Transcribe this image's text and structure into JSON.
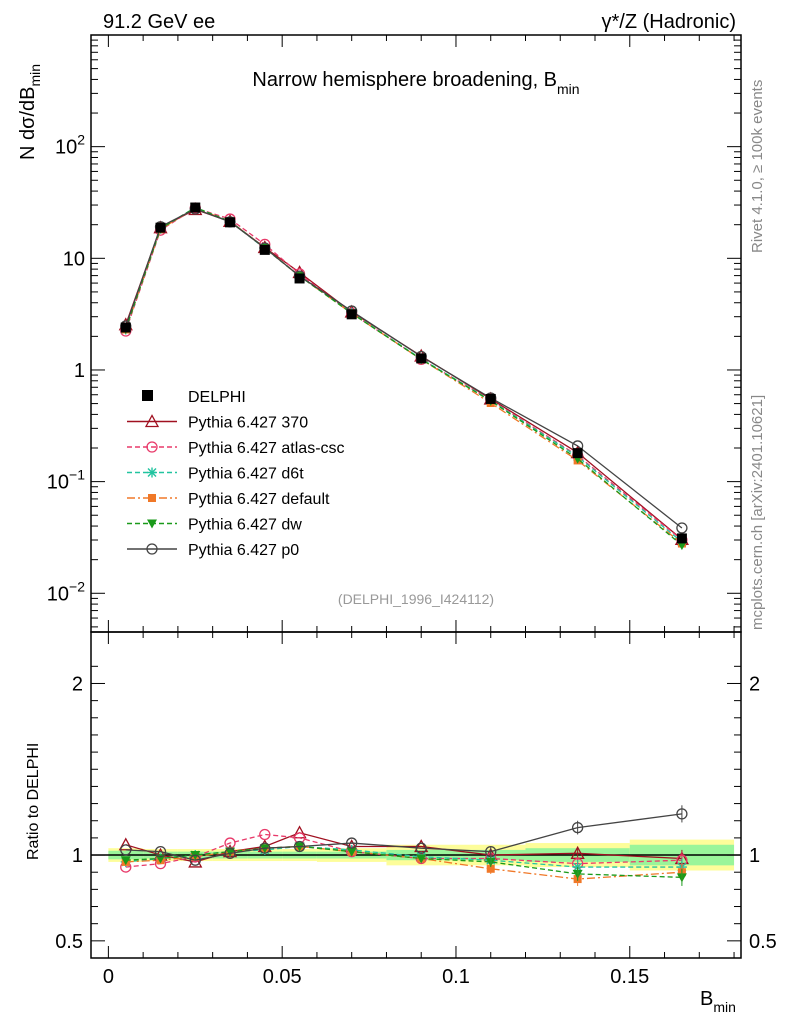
{
  "header": {
    "left": "91.2 GeV ee",
    "right": "γ*/Z (Hadronic)"
  },
  "side_labels": {
    "top": "Rivet 4.1.0, ≥ 100k events",
    "bottom": "mcplots.cern.ch [arXiv:2401.10621]"
  },
  "chart_data": {
    "type": "line",
    "title": "Narrow hemisphere broadening, B",
    "title_sub": "min",
    "watermark": "(DELPHI_1996_I424112)",
    "xlabel": "B",
    "xlabel_sub": "min",
    "ylabel_main": "N  dσ/dB",
    "ylabel_main_sub": "min",
    "ylabel_ratio": "Ratio to DELPHI",
    "xlim": [
      -0.005,
      0.182
    ],
    "ylim_main": [
      0.0045,
      1000
    ],
    "ylim_ratio": [
      0.4,
      2.3
    ],
    "x_ticks": [
      {
        "v": 0,
        "label": "0"
      },
      {
        "v": 0.05,
        "label": "0.05"
      },
      {
        "v": 0.1,
        "label": "0.1"
      },
      {
        "v": 0.15,
        "label": "0.15"
      }
    ],
    "y_ticks_main": [
      {
        "v": 0.01,
        "base": "10",
        "exp": "−2"
      },
      {
        "v": 0.1,
        "base": "10",
        "exp": "−1"
      },
      {
        "v": 1,
        "base": "1",
        "exp": ""
      },
      {
        "v": 10,
        "base": "10",
        "exp": ""
      },
      {
        "v": 100,
        "base": "10",
        "exp": "2"
      }
    ],
    "y_ticks_ratio": [
      {
        "v": 0.5,
        "label": "0.5"
      },
      {
        "v": 1,
        "label": "1"
      },
      {
        "v": 2,
        "label": "2"
      }
    ],
    "x": [
      0.005,
      0.015,
      0.025,
      0.035,
      0.045,
      0.055,
      0.07,
      0.09,
      0.11,
      0.135,
      0.165
    ],
    "bin_edges": [
      0,
      0.01,
      0.02,
      0.03,
      0.04,
      0.05,
      0.06,
      0.08,
      0.1,
      0.12,
      0.15,
      0.18
    ],
    "reference": {
      "name": "DELPHI",
      "values": [
        2.4,
        18.8,
        28.5,
        21.0,
        11.9,
        6.6,
        3.15,
        1.27,
        0.55,
        0.18,
        0.031
      ],
      "band_stat": [
        0.025,
        0.02,
        0.02,
        0.02,
        0.02,
        0.02,
        0.02,
        0.03,
        0.03,
        0.04,
        0.06
      ],
      "band_total": [
        0.04,
        0.035,
        0.035,
        0.035,
        0.035,
        0.035,
        0.04,
        0.06,
        0.06,
        0.07,
        0.09
      ]
    },
    "series": [
      {
        "name": "Pythia 6.427 370",
        "color": "#a01020",
        "dash": "",
        "marker": "triangle-open",
        "ratio": [
          1.06,
          1.0,
          0.96,
          1.02,
          1.05,
          1.13,
          1.05,
          1.05,
          1.0,
          1.01,
          0.98
        ]
      },
      {
        "name": "Pythia 6.427 atlas-csc",
        "color": "#e83a6a",
        "dash": "5,3",
        "marker": "circle-open",
        "ratio": [
          0.93,
          0.95,
          0.99,
          1.07,
          1.12,
          1.1,
          1.02,
          0.98,
          0.98,
          0.95,
          0.97
        ]
      },
      {
        "name": "Pythia 6.427 d6t",
        "color": "#22c4a0",
        "dash": "5,3",
        "marker": "star",
        "ratio": [
          0.96,
          0.98,
          1.0,
          1.02,
          1.03,
          1.05,
          1.03,
          0.99,
          0.97,
          0.93,
          0.93
        ]
      },
      {
        "name": "Pythia 6.427 default",
        "color": "#f07828",
        "dash": "8,3,2,3",
        "marker": "square",
        "ratio": [
          0.96,
          0.97,
          0.99,
          1.02,
          1.04,
          1.05,
          1.02,
          0.98,
          0.92,
          0.86,
          0.9
        ]
      },
      {
        "name": "Pythia 6.427 dw",
        "color": "#1a9a1a",
        "dash": "5,3",
        "marker": "triangle-down",
        "ratio": [
          0.97,
          0.98,
          1.0,
          1.02,
          1.04,
          1.05,
          1.02,
          0.98,
          0.96,
          0.89,
          0.87
        ]
      },
      {
        "name": "Pythia 6.427 p0",
        "color": "#444444",
        "dash": "",
        "marker": "circle-open",
        "ratio": [
          1.03,
          1.02,
          0.97,
          1.01,
          1.04,
          1.05,
          1.07,
          1.04,
          1.02,
          1.16,
          1.24
        ]
      }
    ]
  }
}
